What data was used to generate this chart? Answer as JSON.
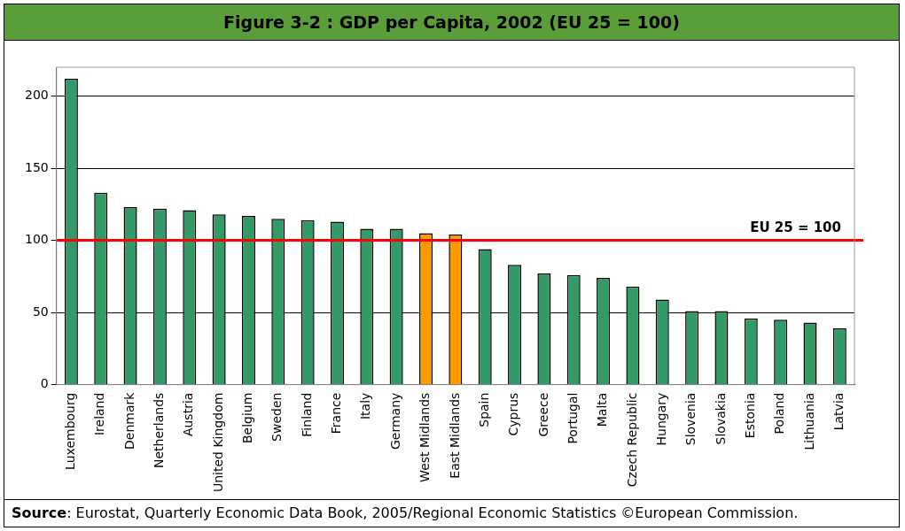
{
  "chart_data": {
    "type": "bar",
    "title": "Figure 3-2 : GDP per Capita, 2002 (EU 25 = 100)",
    "categories": [
      "Luxembourg",
      "Ireland",
      "Denmark",
      "Netherlands",
      "Austria",
      "United Kingdom",
      "Belgium",
      "Sweden",
      "Finland",
      "France",
      "Italy",
      "Germany",
      "West Midlands",
      "East Midlands",
      "Spain",
      "Cyprus",
      "Greece",
      "Portugal",
      "Malta",
      "Czech Republic",
      "Hungary",
      "Slovenia",
      "Slovakia",
      "Estonia",
      "Poland",
      "Lithuania",
      "Latvia"
    ],
    "values": [
      212,
      133,
      123,
      122,
      121,
      118,
      117,
      115,
      114,
      113,
      108,
      108,
      105,
      104,
      94,
      83,
      77,
      76,
      74,
      68,
      59,
      51,
      51,
      46,
      45,
      43,
      39
    ],
    "colors": [
      "#339966",
      "#339966",
      "#339966",
      "#339966",
      "#339966",
      "#339966",
      "#339966",
      "#339966",
      "#339966",
      "#339966",
      "#339966",
      "#339966",
      "#ff9900",
      "#ff9900",
      "#339966",
      "#339966",
      "#339966",
      "#339966",
      "#339966",
      "#339966",
      "#339966",
      "#339966",
      "#339966",
      "#339966",
      "#339966",
      "#339966",
      "#339966"
    ],
    "ylim": [
      0,
      220
    ],
    "yticks": [
      0,
      50,
      100,
      150,
      200
    ],
    "grid": "y",
    "legend": false,
    "ref_lines": [
      {
        "axis": "y",
        "value": 100,
        "label": "EU 25 = 100",
        "color": "#ff0000"
      }
    ],
    "annotations": [
      "Source: Eurostat, Quarterly Economic Data Book, 2005/Regional Economic Statistics ©European Commission."
    ]
  }
}
